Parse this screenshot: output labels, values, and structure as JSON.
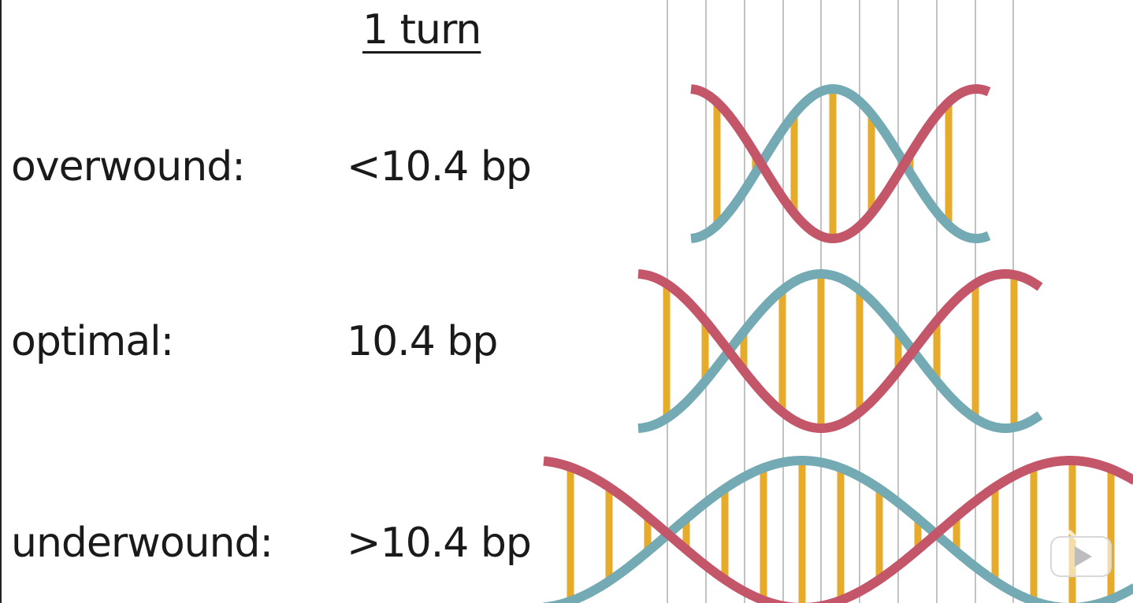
{
  "title": "1 turn",
  "rows": [
    {
      "label": "overwound:",
      "value": "<10.4 bp"
    },
    {
      "label": "optimal:",
      "value": "10.4 bp"
    },
    {
      "label": "underwound:",
      "value": ">10.4 bp"
    }
  ],
  "colors": {
    "strand_a": "#c4566a",
    "strand_b": "#74aab3",
    "base_pair": "#e6ab2a",
    "grid": "#c2c2c2",
    "text": "#1a1a1a"
  },
  "watermark_icon": "video-play-icon"
}
